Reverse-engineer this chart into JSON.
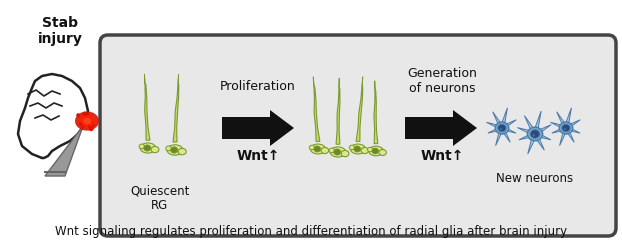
{
  "title": "Wnt signaling regulates proliferation and differentiation of radial glia after brain injury",
  "title_fontsize": 8.5,
  "background_color": "#ffffff",
  "box_bg_color": "#e8e8e8",
  "box_edge_color": "#444444",
  "stab_label": "Stab\ninjury",
  "quiescent_label": "Quiescent\nRG",
  "proliferation_label": "Proliferation",
  "generation_label": "Generation\nof neurons",
  "new_neurons_label": "New neurons",
  "wnt_label1": "Wnt↑",
  "wnt_label2": "Wnt↑",
  "rg_color_body": "#c8d96a",
  "rg_color_body_light": "#dde88a",
  "rg_color_nucleus": "#6a8a2a",
  "rg_outline": "#7a9a30",
  "neuron_color_body": "#7aaac8",
  "neuron_color_body_light": "#aaccdd",
  "neuron_color_nucleus": "#2a4a7a",
  "neuron_outline": "#4a7aaa",
  "arrow_color": "#111111",
  "fig_width": 6.22,
  "fig_height": 2.46,
  "dpi": 100
}
